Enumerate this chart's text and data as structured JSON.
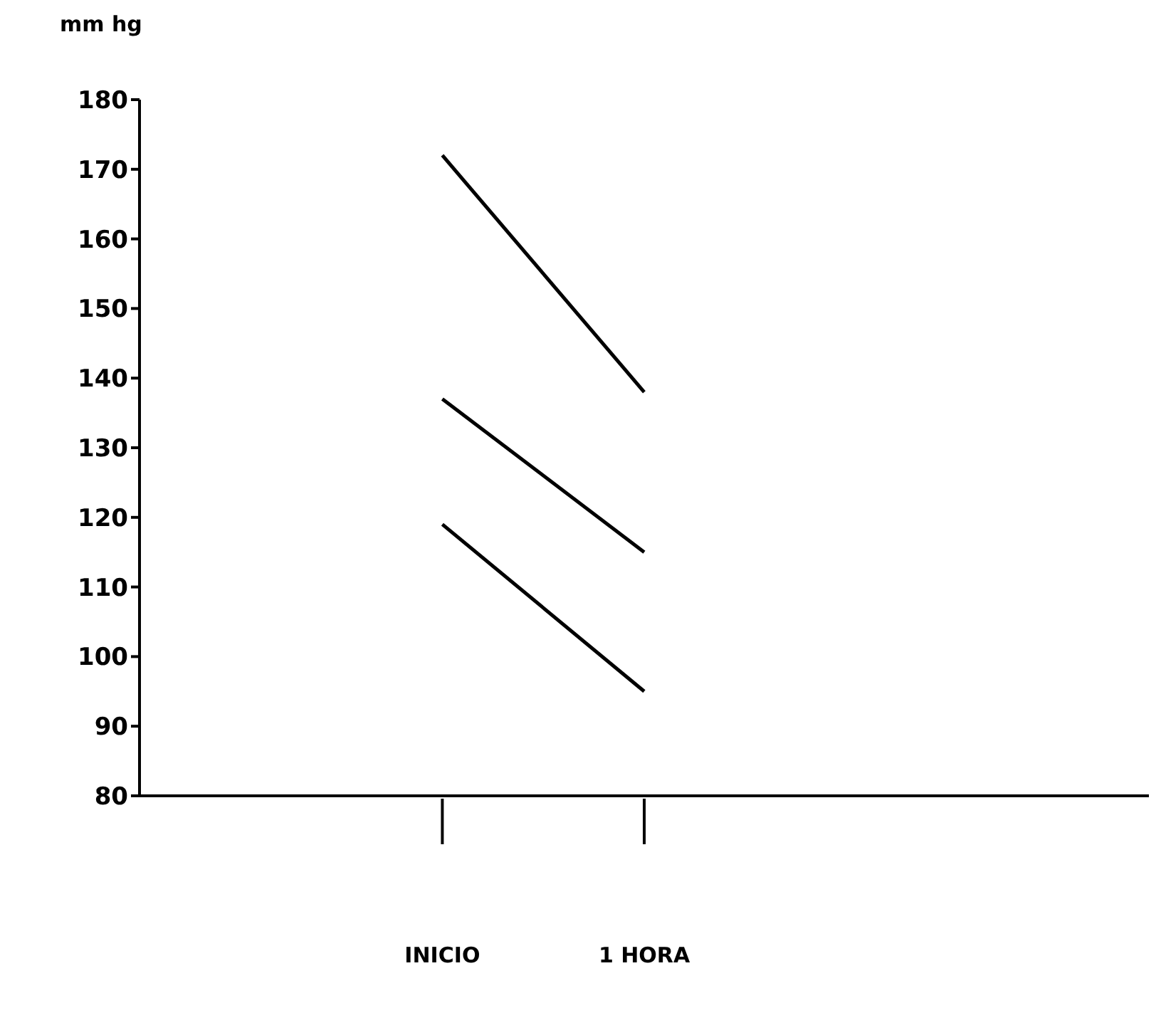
{
  "chart_data": {
    "type": "line",
    "ylabel": "mm hg",
    "categories": [
      null,
      "INICIO",
      "1 HORA",
      null,
      null
    ],
    "series": [
      {
        "color": "#000000",
        "values": [
          null,
          172,
          138,
          null,
          null
        ]
      },
      {
        "color": "#000000",
        "values": [
          null,
          137,
          115,
          null,
          null
        ]
      },
      {
        "color": "#000000",
        "values": [
          null,
          119,
          95,
          null,
          null
        ]
      }
    ],
    "ylim": [
      80,
      180
    ],
    "yticks": [
      80,
      90,
      100,
      110,
      120,
      130,
      140,
      150,
      160,
      170,
      180
    ],
    "grid": false,
    "marker": "none",
    "line_style": "solid"
  }
}
